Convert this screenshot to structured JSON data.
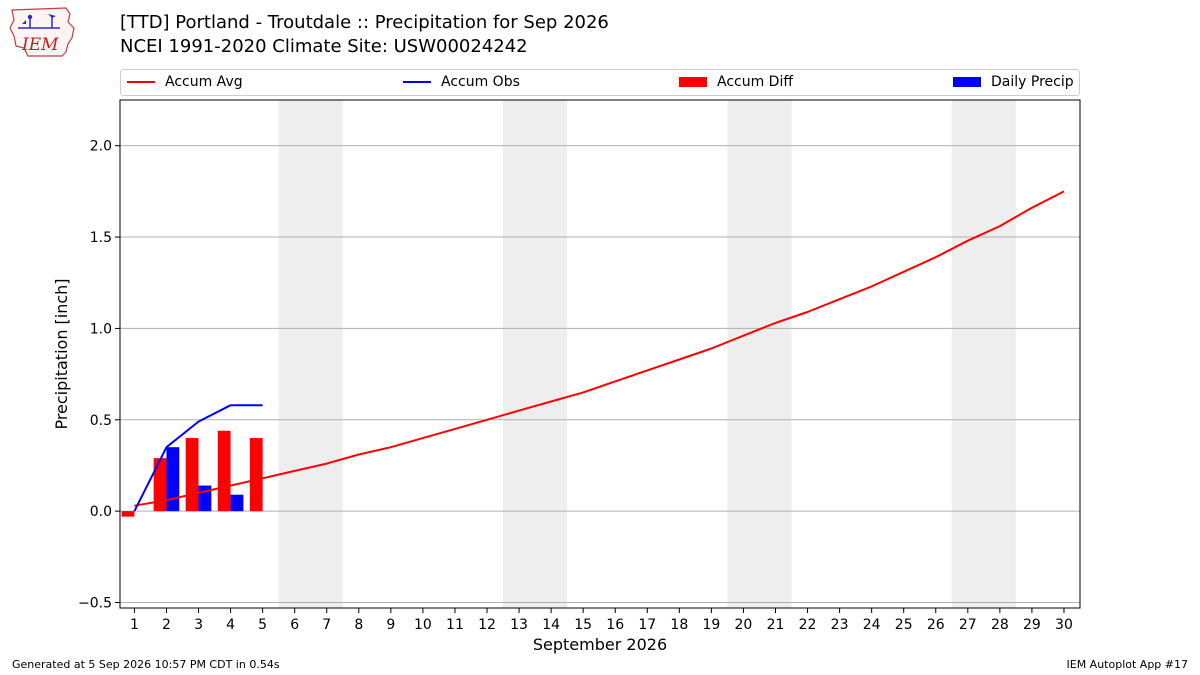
{
  "header": {
    "title_line1": "[TTD] Portland - Troutdale :: Precipitation for Sep 2026",
    "title_line2": "NCEI 1991-2020 Climate Site: USW00024242",
    "logo_text": "IEM"
  },
  "footer": {
    "generated": "Generated at 5 Sep 2026 10:57 PM CDT in 0.54s",
    "app": "IEM Autoplot App #17"
  },
  "colors": {
    "avg": "#ff0000",
    "obs": "#0000ff",
    "diff": "#ff0000",
    "daily": "#0000ff",
    "weekend": "#eeeeee",
    "grid": "#b0b0b0"
  },
  "chart_data": {
    "type": "bar",
    "xlabel": "September 2026",
    "ylabel": "Precipitation [inch]",
    "ylim": [
      -0.53,
      2.25
    ],
    "xlim": [
      0.55,
      30.5
    ],
    "yticks": [
      -0.5,
      0.0,
      0.5,
      1.0,
      1.5,
      2.0
    ],
    "ytick_labels": [
      "−0.5",
      "0.0",
      "0.5",
      "1.0",
      "1.5",
      "2.0"
    ],
    "x_days": [
      1,
      2,
      3,
      4,
      5,
      6,
      7,
      8,
      9,
      10,
      11,
      12,
      13,
      14,
      15,
      16,
      17,
      18,
      19,
      20,
      21,
      22,
      23,
      24,
      25,
      26,
      27,
      28,
      29,
      30
    ],
    "xtick_labels": [
      "1",
      "2",
      "3",
      "4",
      "5",
      "6",
      "7",
      "8",
      "9",
      "10",
      "11",
      "12",
      "13",
      "14",
      "15",
      "16",
      "17",
      "18",
      "19",
      "20",
      "21",
      "22",
      "23",
      "24",
      "25",
      "26",
      "27",
      "28",
      "29",
      "30"
    ],
    "weekends": [
      [
        5.5,
        7.5
      ],
      [
        12.5,
        14.5
      ],
      [
        19.5,
        21.5
      ],
      [
        26.5,
        28.5
      ]
    ],
    "grid": "horizontal",
    "legend": {
      "placement": "top",
      "entries": [
        "Accum Avg",
        "Accum Obs",
        "Accum Diff",
        "Daily Precip"
      ]
    },
    "series": [
      {
        "name": "Accum Avg",
        "kind": "line",
        "x": [
          1,
          2,
          3,
          4,
          5,
          6,
          7,
          8,
          9,
          10,
          11,
          12,
          13,
          14,
          15,
          16,
          17,
          18,
          19,
          20,
          21,
          22,
          23,
          24,
          25,
          26,
          27,
          28,
          29,
          30
        ],
        "values": [
          0.03,
          0.06,
          0.1,
          0.14,
          0.18,
          0.22,
          0.26,
          0.31,
          0.35,
          0.4,
          0.45,
          0.5,
          0.55,
          0.6,
          0.65,
          0.71,
          0.77,
          0.83,
          0.89,
          0.96,
          1.03,
          1.09,
          1.16,
          1.23,
          1.31,
          1.39,
          1.48,
          1.56,
          1.66,
          1.75
        ]
      },
      {
        "name": "Accum Obs",
        "kind": "line",
        "x": [
          1,
          2,
          3,
          4,
          5
        ],
        "values": [
          0.0,
          0.35,
          0.49,
          0.58,
          0.58
        ]
      },
      {
        "name": "Accum Diff",
        "kind": "bar",
        "x": [
          1,
          2,
          3,
          4,
          5
        ],
        "values": [
          -0.03,
          0.29,
          0.4,
          0.44,
          0.4
        ]
      },
      {
        "name": "Daily Precip",
        "kind": "bar",
        "x": [
          1,
          2,
          3,
          4,
          5
        ],
        "values": [
          0.0,
          0.35,
          0.14,
          0.09,
          0.0
        ]
      }
    ]
  }
}
